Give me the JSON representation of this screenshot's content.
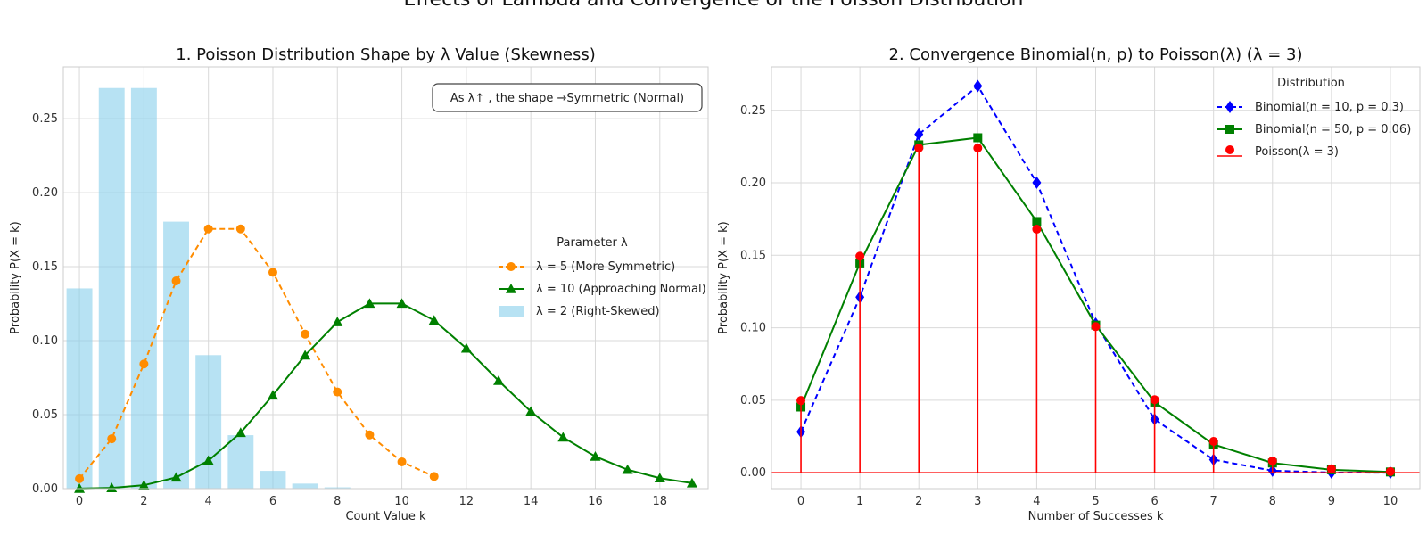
{
  "suptitle": "Effects of Lambda and Convergence of the Poisson Distribution",
  "chart_data": [
    {
      "type": "bar",
      "title": "1. Poisson Distribution Shape by λ Value (Skewness)",
      "xlabel": "Count Value k",
      "ylabel": "Probability P(X = k)",
      "xlim": [
        -0.5,
        19.5
      ],
      "ylim": [
        0,
        0.285
      ],
      "xticks": [
        0,
        2,
        4,
        6,
        8,
        10,
        12,
        14,
        16,
        18
      ],
      "yticks": [
        0.0,
        0.05,
        0.1,
        0.15,
        0.2,
        0.25
      ],
      "ytick_labels": [
        "0.00",
        "0.05",
        "0.10",
        "0.15",
        "0.20",
        "0.25"
      ],
      "grid": true,
      "legend": {
        "title": "Parameter λ",
        "position": "center-right"
      },
      "annotation": "As λ↑ ,  the shape →Symmetric (Normal)",
      "series": [
        {
          "name": "λ = 2 (Right-Skewed)",
          "kind": "bar",
          "color": "#87ceeb",
          "x": [
            0,
            1,
            2,
            3,
            4,
            5,
            6,
            7,
            8,
            9,
            10
          ],
          "values": [
            0.1353,
            0.2707,
            0.2707,
            0.1804,
            0.0902,
            0.0361,
            0.012,
            0.0034,
            0.0009,
            0.0002,
            4e-05
          ]
        },
        {
          "name": "λ = 5 (More Symmetric)",
          "kind": "line",
          "style": "dashed",
          "marker": "circle",
          "color": "#ff8c00",
          "x": [
            0,
            1,
            2,
            3,
            4,
            5,
            6,
            7,
            8,
            9,
            10,
            11
          ],
          "values": [
            0.0067,
            0.0337,
            0.0842,
            0.1404,
            0.1755,
            0.1755,
            0.1462,
            0.1044,
            0.0653,
            0.0363,
            0.0181,
            0.0082
          ]
        },
        {
          "name": "λ = 10 (Approaching Normal)",
          "kind": "line",
          "style": "solid",
          "marker": "triangle",
          "color": "#008000",
          "x": [
            0,
            1,
            2,
            3,
            4,
            5,
            6,
            7,
            8,
            9,
            10,
            11,
            12,
            13,
            14,
            15,
            16,
            17,
            18,
            19
          ],
          "values": [
            5e-05,
            0.0005,
            0.0023,
            0.0076,
            0.0189,
            0.0378,
            0.0631,
            0.0901,
            0.1126,
            0.1251,
            0.1251,
            0.1137,
            0.0948,
            0.0729,
            0.0521,
            0.0347,
            0.0217,
            0.0128,
            0.0071,
            0.0037
          ]
        }
      ]
    },
    {
      "type": "line",
      "title": "2. Convergence Binomial(n, p) to Poisson(λ) (λ = 3)",
      "xlabel": "Number of Successes k",
      "ylabel": "Probability P(X = k)",
      "xlim": [
        -0.5,
        10.5
      ],
      "ylim": [
        -0.011,
        0.28
      ],
      "xticks": [
        0,
        1,
        2,
        3,
        4,
        5,
        6,
        7,
        8,
        9,
        10
      ],
      "yticks": [
        0.0,
        0.05,
        0.1,
        0.15,
        0.2,
        0.25
      ],
      "ytick_labels": [
        "0.00",
        "0.05",
        "0.10",
        "0.15",
        "0.20",
        "0.25"
      ],
      "grid": true,
      "legend": {
        "title": "Distribution",
        "position": "top-right"
      },
      "series": [
        {
          "name": "Binomial(n = 10, p = 0.3)",
          "kind": "line",
          "style": "dashed",
          "marker": "diamond",
          "color": "#0000ff",
          "x": [
            0,
            1,
            2,
            3,
            4,
            5,
            6,
            7,
            8,
            9,
            10
          ],
          "values": [
            0.0282,
            0.1211,
            0.2335,
            0.2668,
            0.2001,
            0.1029,
            0.0368,
            0.009,
            0.0014,
            0.0001,
            0.0
          ]
        },
        {
          "name": "Binomial(n = 50, p = 0.06)",
          "kind": "line",
          "style": "solid",
          "marker": "square",
          "color": "#008000",
          "x": [
            0,
            1,
            2,
            3,
            4,
            5,
            6,
            7,
            8,
            9,
            10
          ],
          "values": [
            0.0453,
            0.1447,
            0.2262,
            0.2311,
            0.1733,
            0.1018,
            0.0487,
            0.0195,
            0.0067,
            0.002,
            0.0005
          ]
        },
        {
          "name": "Poisson(λ = 3)",
          "kind": "stem",
          "marker": "circle",
          "color": "#ff0000",
          "x": [
            0,
            1,
            2,
            3,
            4,
            5,
            6,
            7,
            8,
            9,
            10
          ],
          "values": [
            0.0498,
            0.1494,
            0.224,
            0.224,
            0.168,
            0.1008,
            0.0504,
            0.0216,
            0.0081,
            0.0027,
            0.0008
          ]
        }
      ]
    }
  ]
}
